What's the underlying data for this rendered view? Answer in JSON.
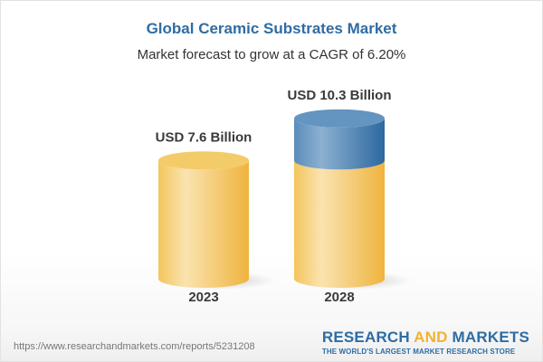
{
  "header": {
    "title": "Global Ceramic Substrates Market",
    "subtitle": "Market forecast to grow at a CAGR of 6.20%"
  },
  "chart_data": {
    "type": "bar",
    "style": "3d-cylinder",
    "title": "Global Ceramic Substrates Market",
    "subtitle": "Market forecast to grow at a CAGR of 6.20%",
    "categories": [
      "2023",
      "2028"
    ],
    "values": [
      7.6,
      10.3
    ],
    "unit": "USD Billion",
    "data_labels": [
      "USD 7.6 Billion",
      "USD 10.3 Billion"
    ],
    "growth_segment_color": "#5b8fbd",
    "base_color": "#f5cd6e",
    "grid": false,
    "legend": "none"
  },
  "footer": {
    "url": "https://www.researchandmarkets.com/reports/5231208",
    "logo": {
      "part1": "RESEARCH ",
      "part2": "AND",
      "part3": " MARKETS",
      "tagline": "THE WORLD'S LARGEST MARKET RESEARCH STORE"
    }
  }
}
